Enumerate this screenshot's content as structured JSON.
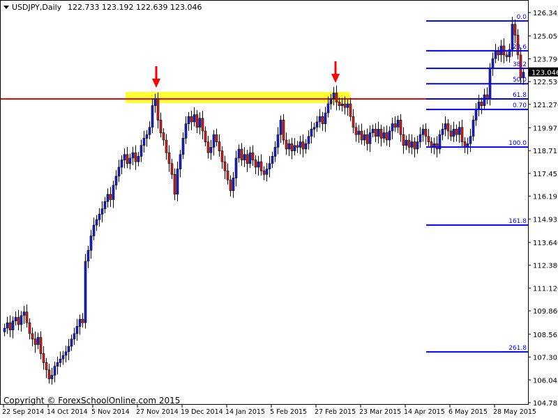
{
  "header": {
    "symbol": "USDJPY,Daily",
    "ohlc": "122.733 123.192 122.639 123.046"
  },
  "copyright": "Copyright © ForexSchoolOnline.com 2015",
  "colors": {
    "bull": "#1a22d8",
    "bear": "#d42020",
    "fib": "#0000ff",
    "resistance": "#ff0000",
    "zone": "#ffff33",
    "arrow": "#ff0000"
  },
  "chart_data": {
    "type": "candlestick",
    "ylim": [
      104.785,
      126.345
    ],
    "y_ticks": [
      "126.345",
      "125.050",
      "123.790",
      "122.530",
      "121.270",
      "119.975",
      "118.715",
      "117.455",
      "116.195",
      "114.935",
      "113.640",
      "112.380",
      "111.120",
      "109.860",
      "108.565",
      "107.305",
      "106.045",
      "104.785"
    ],
    "x_ticks": [
      "22 Sep 2014",
      "14 Oct 2014",
      "5 Nov 2014",
      "27 Nov 2014",
      "19 Dec 2014",
      "14 Jan 2015",
      "5 Feb 2015",
      "27 Feb 2015",
      "23 Mar 2015",
      "14 Apr 2015",
      "6 May 2015",
      "28 May 2015"
    ],
    "bars_per_tick": 16,
    "first_open": 108.7,
    "close": [
      108.9,
      109.2,
      108.8,
      109.3,
      109.5,
      109.1,
      109.6,
      109.8,
      109.2,
      108.6,
      108.3,
      108.0,
      108.4,
      107.5,
      107.0,
      106.6,
      106.1,
      106.3,
      106.8,
      107.0,
      107.2,
      107.4,
      107.6,
      107.9,
      108.3,
      108.6,
      109.0,
      109.4,
      109.2,
      112.6,
      113.2,
      114.0,
      114.6,
      114.9,
      115.2,
      115.5,
      115.9,
      116.3,
      116.0,
      116.8,
      117.3,
      117.8,
      118.2,
      118.5,
      118.0,
      118.3,
      118.6,
      118.1,
      118.4,
      119.0,
      119.4,
      119.6,
      120.0,
      121.2,
      121.6,
      120.4,
      119.7,
      119.3,
      118.6,
      118.0,
      117.4,
      116.3,
      117.7,
      118.5,
      119.4,
      120.2,
      120.6,
      120.3,
      120.7,
      120.0,
      120.5,
      119.8,
      119.2,
      118.6,
      118.9,
      119.6,
      119.2,
      118.7,
      118.1,
      117.6,
      117.1,
      116.5,
      117.2,
      118.3,
      118.8,
      118.2,
      118.5,
      118.0,
      118.6,
      118.2,
      117.8,
      118.1,
      117.6,
      117.4,
      117.7,
      118.0,
      118.4,
      118.9,
      119.6,
      120.4,
      119.3,
      118.8,
      119.1,
      118.7,
      119.0,
      118.9,
      119.2,
      118.8,
      119.1,
      119.5,
      119.9,
      120.0,
      120.3,
      120.6,
      120.2,
      120.8,
      121.3,
      121.6,
      121.9,
      121.4,
      121.2,
      121.3,
      121.1,
      121.3,
      120.6,
      120.0,
      119.6,
      119.8,
      119.3,
      119.6,
      119.1,
      119.7,
      119.9,
      119.5,
      119.9,
      119.4,
      119.7,
      119.3,
      119.8,
      120.2,
      120.0,
      120.4,
      119.6,
      119.0,
      119.3,
      118.9,
      119.2,
      118.8,
      119.2,
      119.6,
      119.9,
      119.5,
      119.2,
      118.9,
      119.1,
      118.8,
      119.6,
      119.9,
      120.2,
      119.8,
      119.5,
      119.9,
      119.6,
      120.0,
      119.2,
      118.9,
      119.1,
      119.5,
      120.4,
      121.0,
      121.4,
      121.2,
      121.8,
      121.6,
      123.3,
      123.8,
      124.2,
      124.0,
      124.5,
      124.0,
      123.9,
      124.3,
      125.7,
      125.1,
      124.0,
      122.733,
      123.046
    ],
    "current_price": "123.046",
    "fibonacci": [
      {
        "label": "0.0",
        "price": 125.88
      },
      {
        "label": "23.6",
        "price": 124.23
      },
      {
        "label": "38.2",
        "price": 123.26
      },
      {
        "label": "50.0",
        "price": 122.41
      },
      {
        "label": "61.8",
        "price": 121.57
      },
      {
        "label": "0.70",
        "price": 120.99
      },
      {
        "label": "100.0",
        "price": 118.91
      },
      {
        "label": "161.8",
        "price": 114.6
      },
      {
        "label": "261.8",
        "price": 107.59
      }
    ],
    "resistance_line": 121.57,
    "resistance_zone": [
      121.34,
      121.96
    ],
    "arrows_at_dates": [
      "27 Nov 2014",
      "27 Feb 2015"
    ]
  }
}
